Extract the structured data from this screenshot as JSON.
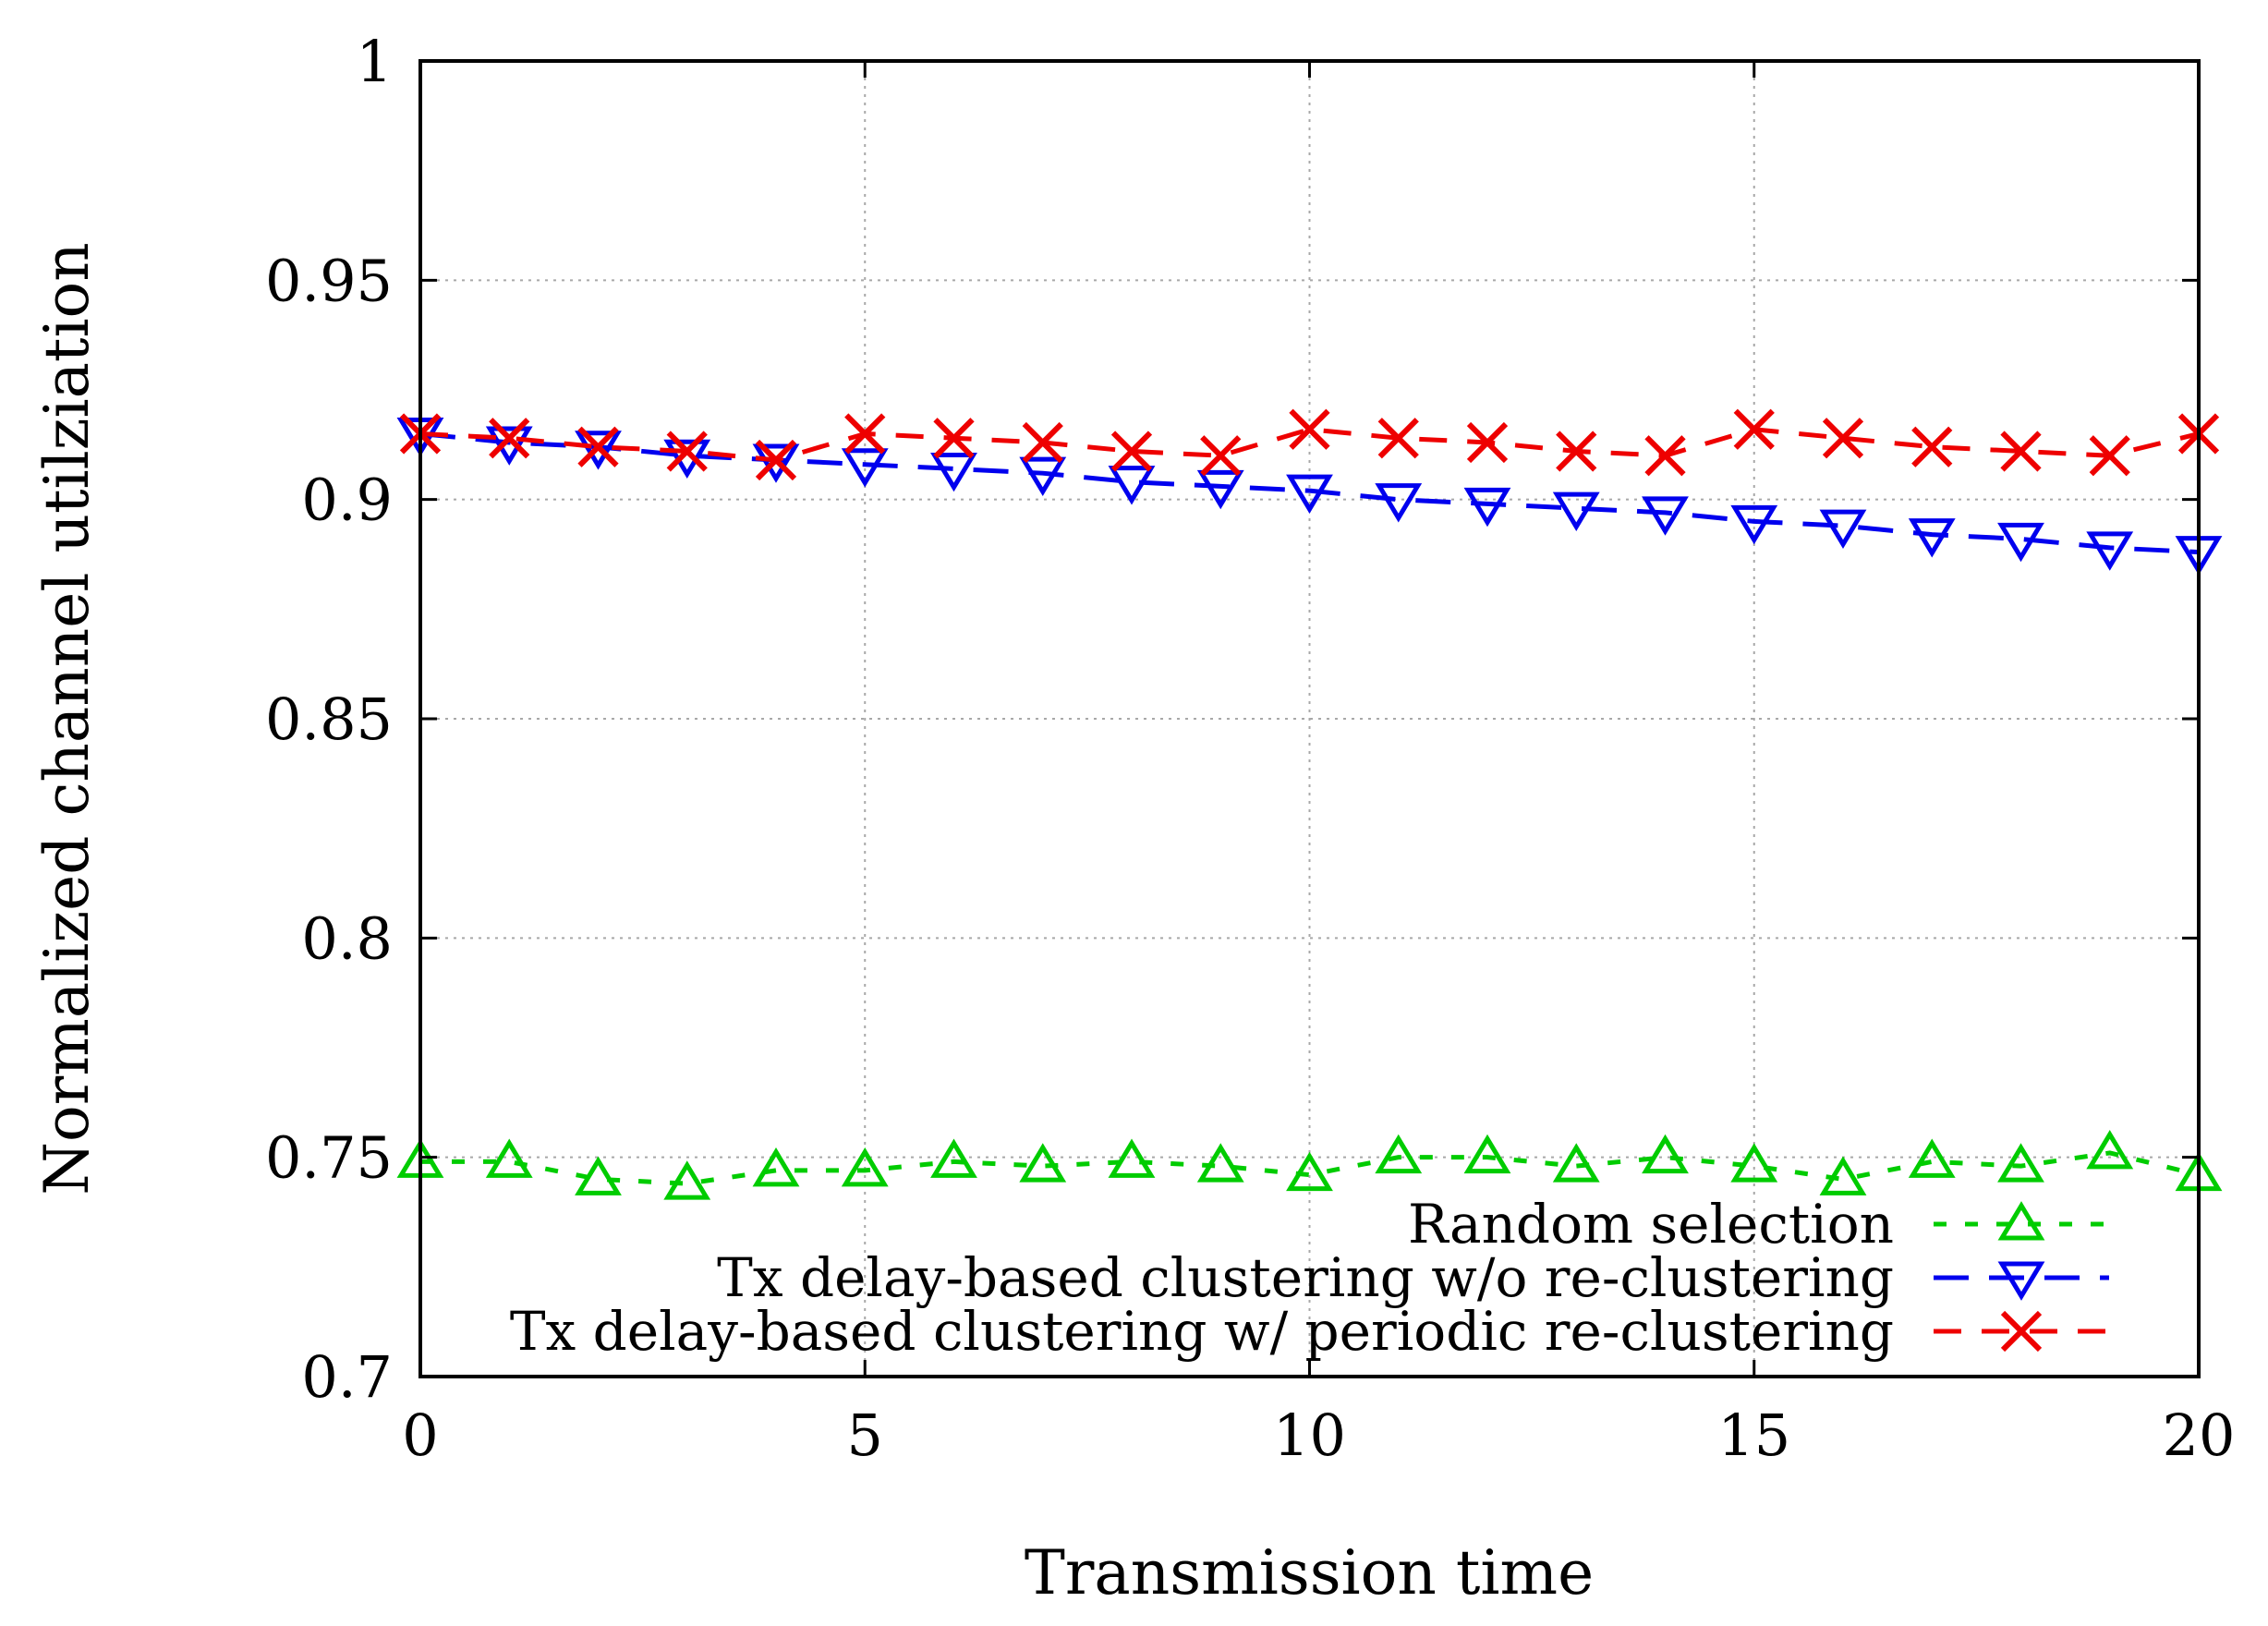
{
  "chart_data": {
    "type": "line",
    "title": "",
    "xlabel": "Transmission time",
    "ylabel": "Normalized channel utilziation",
    "xlim": [
      0,
      20
    ],
    "ylim": [
      0.7,
      1.0
    ],
    "xticks": [
      0,
      5,
      10,
      15,
      20
    ],
    "xtick_labels": [
      "0",
      "5",
      "10",
      "15",
      "20"
    ],
    "yticks": [
      0.7,
      0.75,
      0.8,
      0.85,
      0.9,
      0.95,
      1.0
    ],
    "ytick_labels": [
      "0.7",
      "0.75",
      "0.8",
      "0.85",
      "0.9",
      "0.95",
      "1"
    ],
    "grid": true,
    "legend_position": "bottom-right",
    "x": [
      0,
      1,
      2,
      3,
      4,
      5,
      6,
      7,
      8,
      9,
      10,
      11,
      12,
      13,
      14,
      15,
      16,
      17,
      18,
      19,
      20
    ],
    "series": [
      {
        "name": "Random selection",
        "color": "#00cc00",
        "marker": "triangle-up",
        "values": [
          0.749,
          0.749,
          0.745,
          0.744,
          0.747,
          0.747,
          0.749,
          0.748,
          0.749,
          0.748,
          0.746,
          0.75,
          0.75,
          0.748,
          0.75,
          0.748,
          0.745,
          0.749,
          0.748,
          0.751,
          0.746
        ]
      },
      {
        "name": "Tx delay-based clustering w/o re-clustering",
        "color": "#0000ee",
        "marker": "triangle-down",
        "values": [
          0.915,
          0.913,
          0.912,
          0.91,
          0.909,
          0.908,
          0.907,
          0.906,
          0.904,
          0.903,
          0.902,
          0.9,
          0.899,
          0.898,
          0.897,
          0.895,
          0.894,
          0.892,
          0.891,
          0.889,
          0.888
        ]
      },
      {
        "name": "Tx delay-based clustering w/ periodic re-clustering",
        "color": "#ee0000",
        "marker": "cross",
        "values": [
          0.915,
          0.914,
          0.912,
          0.911,
          0.909,
          0.915,
          0.914,
          0.913,
          0.911,
          0.91,
          0.916,
          0.914,
          0.913,
          0.911,
          0.91,
          0.916,
          0.914,
          0.912,
          0.911,
          0.91,
          0.915
        ]
      }
    ]
  }
}
